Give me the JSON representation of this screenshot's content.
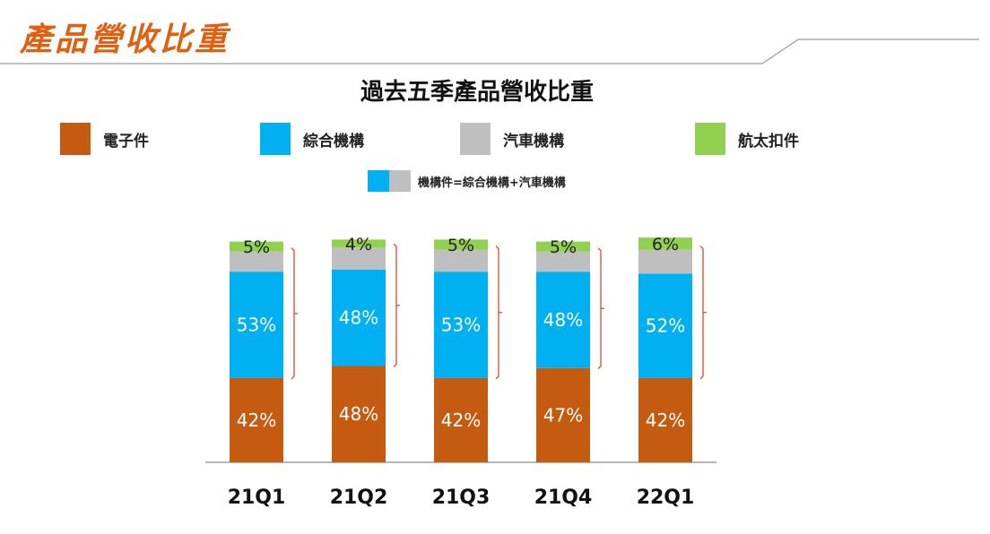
{
  "header": {
    "title": "產品營收比重"
  },
  "chart_data": {
    "type": "bar",
    "stacked": true,
    "title": "過去五季產品營收比重",
    "categories": [
      "21Q1",
      "21Q2",
      "21Q3",
      "21Q4",
      "22Q1"
    ],
    "series": [
      {
        "name": "電子件",
        "color": "#c55a11",
        "values": [
          42,
          48,
          42,
          47,
          42
        ]
      },
      {
        "name": "綜合機構",
        "color": "#00b0f0",
        "values": [
          53,
          48,
          53,
          48,
          52
        ]
      },
      {
        "name": "汽車機構",
        "color": "#bfbfbf",
        "values": [
          10,
          11,
          11,
          10,
          12
        ]
      },
      {
        "name": "航太扣件",
        "color": "#92d050",
        "values": [
          5,
          4,
          5,
          5,
          6
        ]
      }
    ],
    "labeled_series": {
      "電子件": [
        "42%",
        "48%",
        "42%",
        "47%",
        "42%"
      ],
      "綜合機構": [
        "53%",
        "48%",
        "53%",
        "48%",
        "52%"
      ],
      "航太扣件": [
        "5%",
        "4%",
        "5%",
        "5%",
        "6%"
      ]
    },
    "note": "機構件=綜合機構+汽車機構",
    "xlabel": "",
    "ylabel": "",
    "ylim": [
      0,
      120
    ],
    "grid": false,
    "legend_position": "top"
  }
}
